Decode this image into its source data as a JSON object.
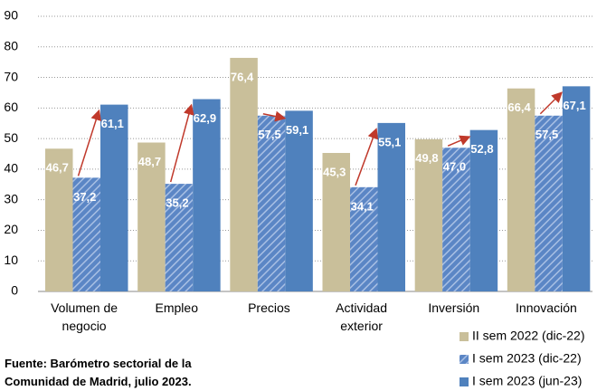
{
  "chart_data": {
    "type": "bar",
    "categories": [
      "Volumen de negocio",
      "Empleo",
      "Precios",
      "Actividad exterior",
      "Inversión",
      "Innovación"
    ],
    "series": [
      {
        "name": "II sem 2022 (dic-22)",
        "color": "#c9bf9a",
        "values": [
          46.7,
          48.7,
          76.4,
          45.3,
          49.8,
          66.4
        ],
        "value_labels": [
          "46,7",
          "48,7",
          "76,4",
          "45,3",
          "49,8",
          "66,4"
        ]
      },
      {
        "name": "I sem 2023 (dic-22)",
        "color": "#5b86c5",
        "pattern": "hatch",
        "values": [
          37.2,
          35.2,
          57.5,
          34.1,
          47.0,
          57.5
        ],
        "value_labels": [
          "37,2",
          "35,2",
          "57,5",
          "34,1",
          "47,0",
          "57,5"
        ]
      },
      {
        "name": "I sem 2023 (jun-23)",
        "color": "#4f81bd",
        "values": [
          61.1,
          62.9,
          59.1,
          55.1,
          52.8,
          67.1
        ],
        "value_labels": [
          "61,1",
          "62,9",
          "59,1",
          "55,1",
          "52,8",
          "67,1"
        ]
      }
    ],
    "ylim": [
      0,
      90
    ],
    "yticks": [
      0,
      10,
      20,
      30,
      40,
      50,
      60,
      70,
      80,
      90
    ],
    "grid": true,
    "legend": "bottom-right",
    "source": "Fuente: Barómetro sectorial de la Comunidad de Madrid, julio 2023."
  }
}
